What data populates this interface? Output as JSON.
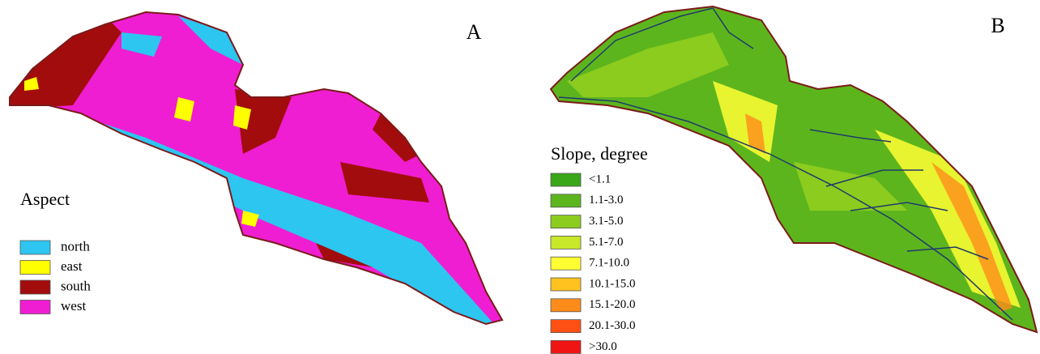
{
  "panels": [
    {
      "label": "A",
      "legend": {
        "title": "Aspect",
        "items": [
          {
            "label": "north",
            "color": "#2cc6f0"
          },
          {
            "label": "east",
            "color": "#ffff00"
          },
          {
            "label": "south",
            "color": "#a30c0c"
          },
          {
            "label": "west",
            "color": "#f01ed2"
          }
        ]
      }
    },
    {
      "label": "B",
      "legend": {
        "title": "Slope, degree",
        "items": [
          {
            "label": "<1.1",
            "color": "#3aa61a"
          },
          {
            "label": "1.1-3.0",
            "color": "#5db51d"
          },
          {
            "label": "3.1-5.0",
            "color": "#8ccc1e"
          },
          {
            "label": "5.1-7.0",
            "color": "#c8e82a"
          },
          {
            "label": "7.1-10.0",
            "color": "#ffff33"
          },
          {
            "label": "10.1-15.0",
            "color": "#ffc21e"
          },
          {
            "label": "15.1-20.0",
            "color": "#ff8c1a"
          },
          {
            "label": "20.1-30.0",
            "color": "#ff5014"
          },
          {
            "label": ">30.0",
            "color": "#f01414"
          }
        ]
      }
    }
  ]
}
